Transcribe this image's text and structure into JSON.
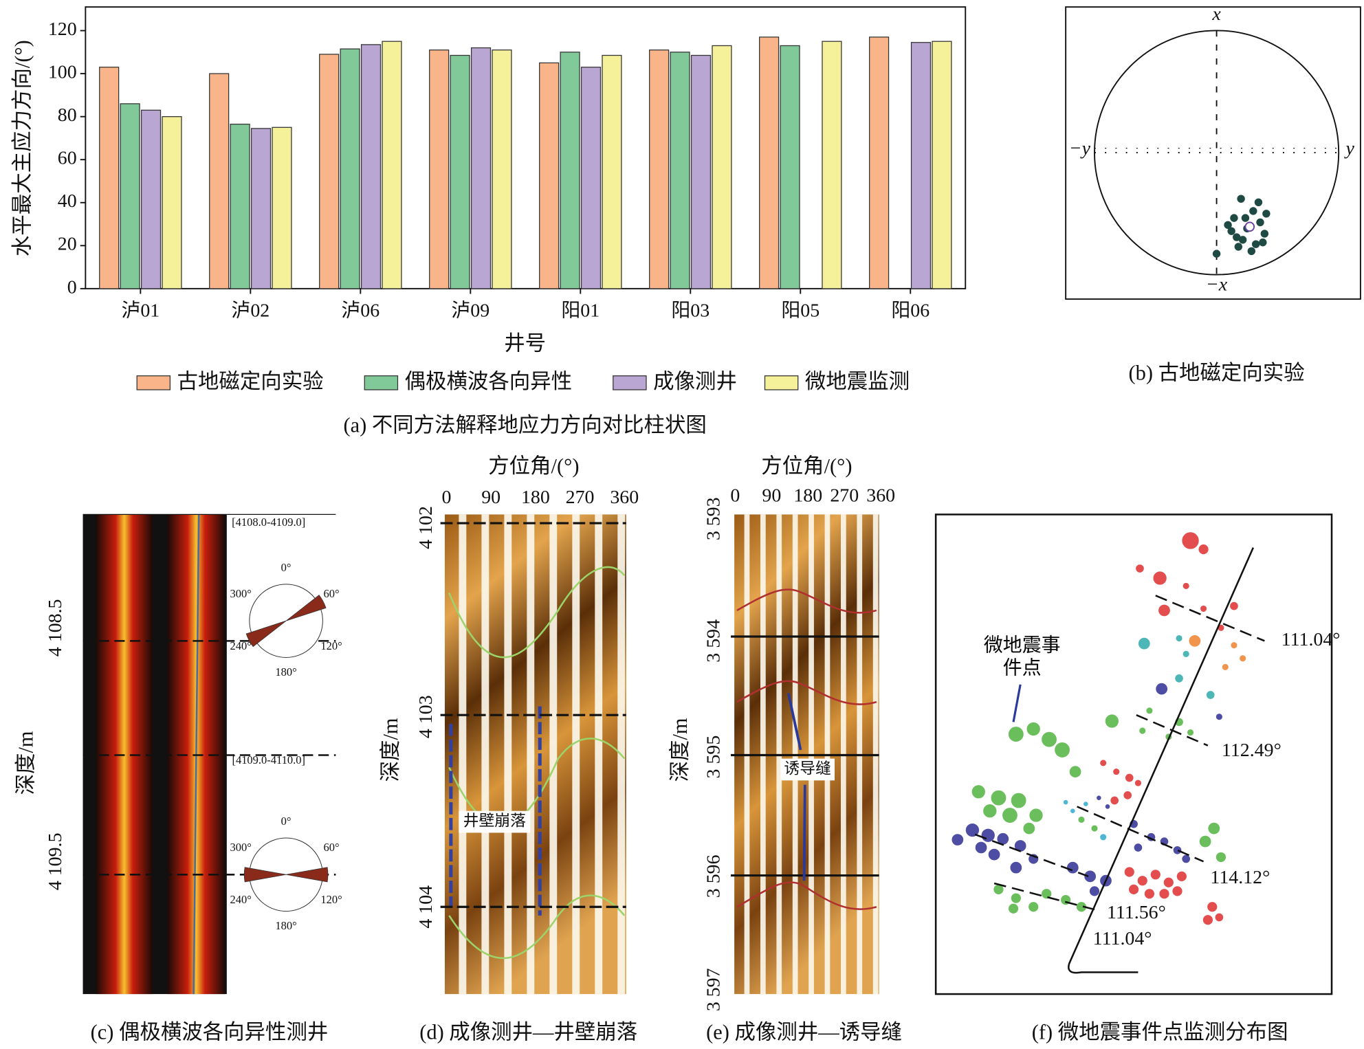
{
  "chart_data": {
    "type": "bar",
    "caption": "(a) 不同方法解释地应力方向对比柱状图",
    "x_label": "井号",
    "y_label": "水平最大主应力方向/(°)",
    "categories": [
      "泸01",
      "泸02",
      "泸06",
      "泸09",
      "阳01",
      "阳03",
      "阳05",
      "阳06"
    ],
    "series": [
      {
        "name": "古地磁定向实验",
        "color": "#f9b48a",
        "values": [
          103,
          100,
          109,
          111,
          105,
          111,
          117,
          117
        ]
      },
      {
        "name": "偶极横波各向异性",
        "color": "#82c99a",
        "values": [
          86,
          76.5,
          111.5,
          108.5,
          110,
          110,
          113,
          null
        ]
      },
      {
        "name": "成像测井",
        "color": "#b9a6d3",
        "values": [
          83,
          74.5,
          113.5,
          112,
          103,
          108.5,
          null,
          114.5
        ]
      },
      {
        "name": "微地震监测",
        "color": "#f5f09a",
        "values": [
          80,
          75,
          115,
          111,
          108.5,
          113,
          115,
          115
        ]
      }
    ],
    "ylim": [
      0,
      131
    ],
    "yticks": [
      0,
      20,
      40,
      60,
      80,
      100,
      120
    ],
    "legend": "bottom"
  },
  "panel_b": {
    "caption": "(b) 古地磁定向实验",
    "x": "x",
    "neg_x": "−x",
    "y": "y",
    "neg_y": "−y"
  },
  "panel_c": {
    "caption": "(c) 偶极横波各向异性测井",
    "depth_label": "深度/m",
    "depths": [
      "4 108.5",
      "4 109.5"
    ],
    "intervals": [
      "[4108.0-4109.0]",
      "[4109.0-4110.0]"
    ],
    "rose_labels": [
      "0°",
      "60°",
      "120°",
      "180°",
      "240°",
      "300°"
    ]
  },
  "panel_d": {
    "caption": "(d) 成像测井—井壁崩落",
    "azimuth_label": "方位角/(°)",
    "azimuth_ticks": [
      0,
      90,
      180,
      270,
      360
    ],
    "depth_label": "深度/m",
    "depths": [
      "4 102",
      "4 103",
      "4 104"
    ],
    "annotation": "井壁崩落"
  },
  "panel_e": {
    "caption": "(e) 成像测井—诱导缝",
    "azimuth_label": "方位角/(°)",
    "azimuth_ticks": [
      0,
      90,
      180,
      270,
      360
    ],
    "depth_label": "深度/m",
    "depths": [
      "3 593",
      "3 594",
      "3 595",
      "3 596",
      "3 597"
    ],
    "annotation": "诱导缝"
  },
  "panel_f": {
    "caption": "(f) 微地震事件点监测分布图",
    "annotation": "微地震事件点",
    "angles": [
      "111.04°",
      "112.49°",
      "114.12°",
      "111.56°",
      "111.04°"
    ]
  }
}
